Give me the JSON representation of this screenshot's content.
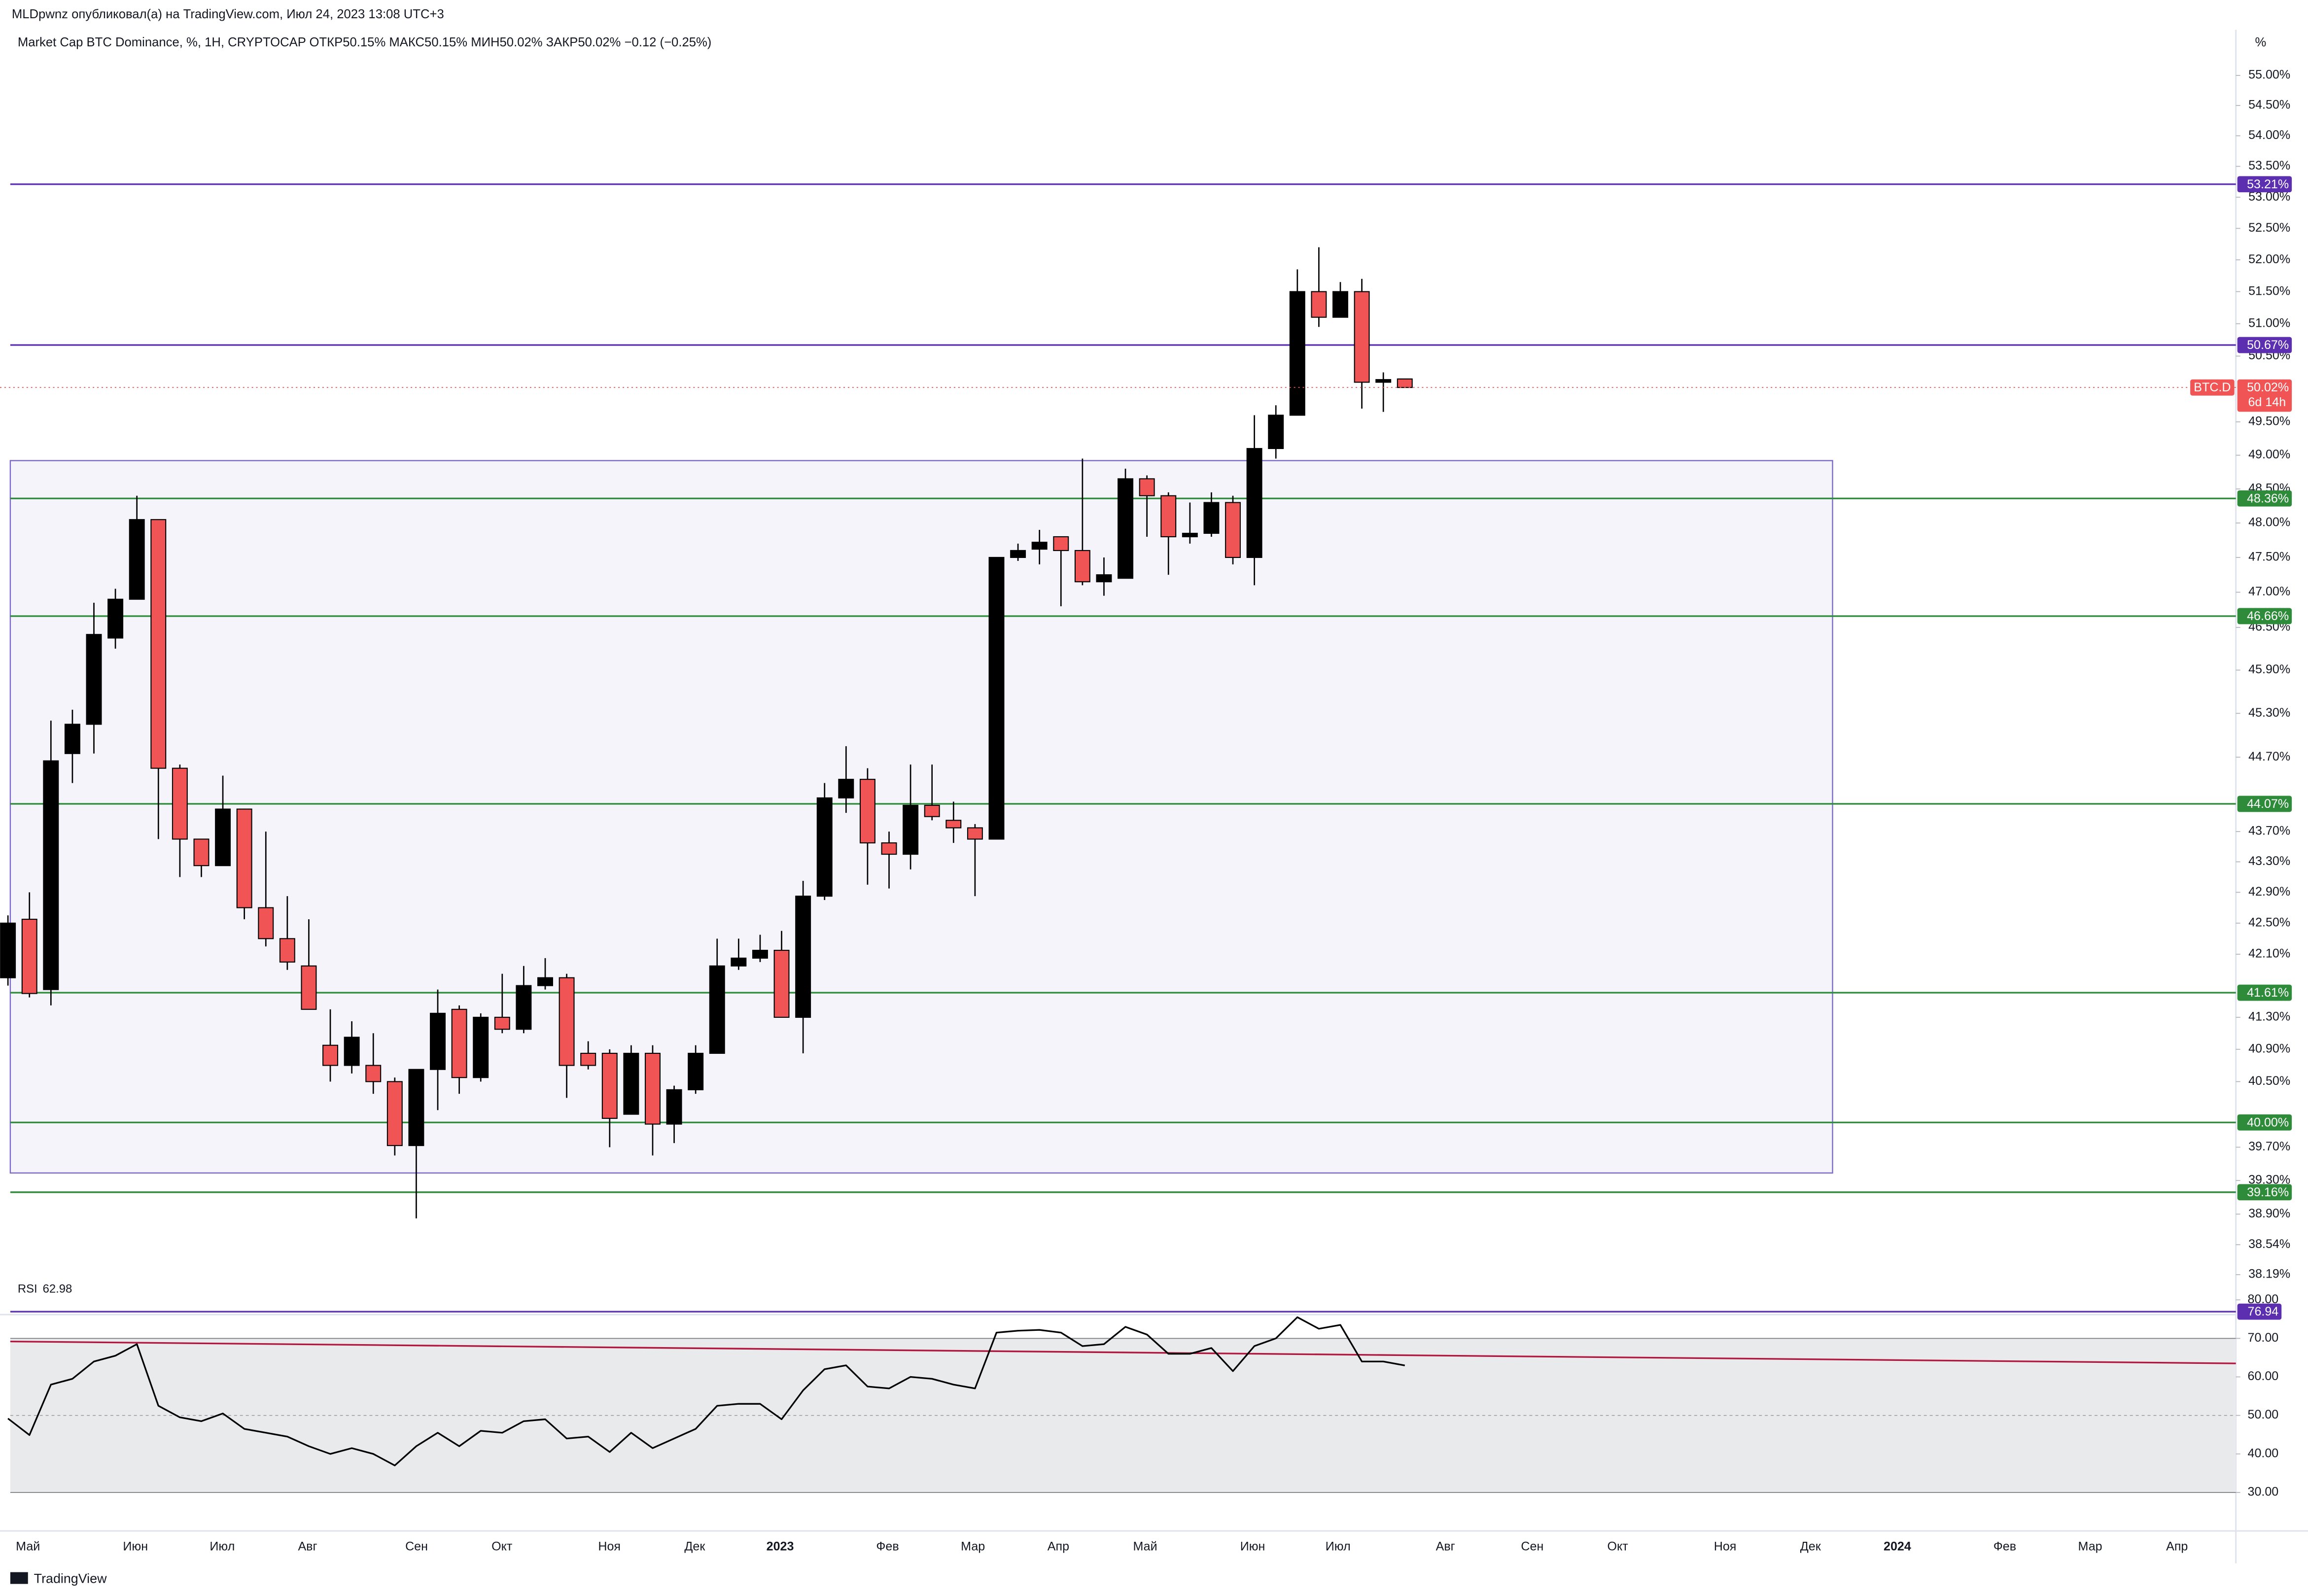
{
  "header": {
    "publisher": "MLDpwnz опубликовал(а) на TradingView.com, Июл 24, 2023 13:08 UTC+3",
    "symbol_line": "Market Cap BTC Dominance, %, 1H, CRYPTOCAP  ОТКР50.15%  МАКС50.15%  МИН50.02%  ЗАКР50.02%  −0.12 (−0.25%)",
    "axis_unit": "%"
  },
  "footer": {
    "brand": "TradingView"
  },
  "chart_data": [
    {
      "type": "candlestick",
      "log_scale": true,
      "up_color": "#000000",
      "down_color": "#f05454",
      "ylim": [
        37.78,
        55.77
      ],
      "yticks": [
        {
          "value": 55,
          "label": "55.00%"
        },
        {
          "value": 54.5,
          "label": "54.50%"
        },
        {
          "value": 54,
          "label": "54.00%"
        },
        {
          "value": 53.5,
          "label": "53.50%"
        },
        {
          "value": 53,
          "label": "53.00%"
        },
        {
          "value": 52.5,
          "label": "52.50%"
        },
        {
          "value": 52,
          "label": "52.00%"
        },
        {
          "value": 51.5,
          "label": "51.50%"
        },
        {
          "value": 51,
          "label": "51.00%"
        },
        {
          "value": 50.5,
          "label": "50.50%"
        },
        {
          "value": 49.5,
          "label": "49.50%"
        },
        {
          "value": 49,
          "label": "49.00%"
        },
        {
          "value": 48.5,
          "label": "48.50%"
        },
        {
          "value": 48,
          "label": "48.00%"
        },
        {
          "value": 47.5,
          "label": "47.50%"
        },
        {
          "value": 47,
          "label": "47.00%"
        },
        {
          "value": 46.5,
          "label": "46.50%"
        },
        {
          "value": 45.9,
          "label": "45.90%"
        },
        {
          "value": 45.3,
          "label": "45.30%"
        },
        {
          "value": 44.7,
          "label": "44.70%"
        },
        {
          "value": 43.7,
          "label": "43.70%"
        },
        {
          "value": 43.3,
          "label": "43.30%"
        },
        {
          "value": 42.9,
          "label": "42.90%"
        },
        {
          "value": 42.5,
          "label": "42.50%"
        },
        {
          "value": 42.1,
          "label": "42.10%"
        },
        {
          "value": 41.3,
          "label": "41.30%"
        },
        {
          "value": 40.9,
          "label": "40.90%"
        },
        {
          "value": 40.5,
          "label": "40.50%"
        },
        {
          "value": 39.7,
          "label": "39.70%"
        },
        {
          "value": 39.3,
          "label": "39.30%"
        },
        {
          "value": 38.9,
          "label": "38.90%"
        },
        {
          "value": 38.54,
          "label": "38.54%"
        },
        {
          "value": 38.19,
          "label": "38.19%"
        }
      ],
      "time_axis": [
        "Май",
        "Июн",
        "Июл",
        "Авг",
        "Сен",
        "Окт",
        "Ноя",
        "Дек",
        "2023",
        "Фев",
        "Мар",
        "Апр",
        "Май",
        "Июн",
        "Июл",
        "Авг",
        "Сен",
        "Окт",
        "Ноя",
        "Дек",
        "2024",
        "Фев",
        "Мар",
        "Апр"
      ],
      "open": [
        41.8,
        42.55,
        41.65,
        44.75,
        45.15,
        46.35,
        46.9,
        48.05,
        44.55,
        43.6,
        43.25,
        44.0,
        42.7,
        42.3,
        41.95,
        40.95,
        40.7,
        40.7,
        40.5,
        39.72,
        40.65,
        41.4,
        40.55,
        41.3,
        41.15,
        41.7,
        41.8,
        40.85,
        40.85,
        40.1,
        40.85,
        39.98,
        40.4,
        40.85,
        41.95,
        42.05,
        42.15,
        41.3,
        42.85,
        44.15,
        44.4,
        43.55,
        43.4,
        44.05,
        43.85,
        43.75,
        43.6,
        47.5,
        47.62,
        47.8,
        47.6,
        47.15,
        47.2,
        48.65,
        48.4,
        47.8,
        47.85,
        48.3,
        47.5,
        49.1,
        49.6,
        51.5,
        51.1,
        51.5,
        50.1,
        50.15
      ],
      "high": [
        42.6,
        42.9,
        45.2,
        45.35,
        46.85,
        47.05,
        48.4,
        48.05,
        44.6,
        43.6,
        44.45,
        44.0,
        43.7,
        42.85,
        42.55,
        41.4,
        41.25,
        41.1,
        40.55,
        40.65,
        41.65,
        41.45,
        41.35,
        41.85,
        41.95,
        42.05,
        41.85,
        41.0,
        40.9,
        40.95,
        40.95,
        40.45,
        40.95,
        42.3,
        42.3,
        42.35,
        42.4,
        43.05,
        44.35,
        44.85,
        44.55,
        43.7,
        44.6,
        44.6,
        44.1,
        43.8,
        47.5,
        47.7,
        47.9,
        47.8,
        48.95,
        47.5,
        48.8,
        48.7,
        48.45,
        48.3,
        48.45,
        48.4,
        49.6,
        49.75,
        51.85,
        52.2,
        51.65,
        51.7,
        50.25,
        50.15
      ],
      "low": [
        41.7,
        41.55,
        41.45,
        44.35,
        44.75,
        46.2,
        46.9,
        43.6,
        43.1,
        43.1,
        43.25,
        42.55,
        42.2,
        41.9,
        41.4,
        40.5,
        40.6,
        40.35,
        39.6,
        38.85,
        40.15,
        40.35,
        40.5,
        41.1,
        41.1,
        41.65,
        40.3,
        40.65,
        39.7,
        40.1,
        39.6,
        39.75,
        40.35,
        40.85,
        41.9,
        42.0,
        41.3,
        40.85,
        42.8,
        43.95,
        43.0,
        42.95,
        43.2,
        43.85,
        43.55,
        42.85,
        43.6,
        47.45,
        47.4,
        46.8,
        47.1,
        46.95,
        47.2,
        47.8,
        47.25,
        47.7,
        47.8,
        47.4,
        47.1,
        48.95,
        49.6,
        50.95,
        51.1,
        49.7,
        49.65,
        50.02
      ],
      "close": [
        42.5,
        41.6,
        44.65,
        45.15,
        46.4,
        46.9,
        48.05,
        44.55,
        43.6,
        43.25,
        44.0,
        42.7,
        42.3,
        42.0,
        41.4,
        40.7,
        41.05,
        40.5,
        39.72,
        40.65,
        41.35,
        40.55,
        41.3,
        41.15,
        41.7,
        41.8,
        40.7,
        40.7,
        40.05,
        40.85,
        39.98,
        40.4,
        40.85,
        41.95,
        42.05,
        42.15,
        41.3,
        42.85,
        44.15,
        44.4,
        43.55,
        43.4,
        44.05,
        43.9,
        43.75,
        43.6,
        47.5,
        47.6,
        47.72,
        47.6,
        47.15,
        47.25,
        48.65,
        48.4,
        47.8,
        47.85,
        48.3,
        47.5,
        49.1,
        49.6,
        51.5,
        51.1,
        51.5,
        50.1,
        50.14,
        50.02
      ],
      "zone": {
        "top": 48.92,
        "bottom": 39.39,
        "color": "#7b68c8"
      },
      "levels": [
        {
          "value": 53.21,
          "label": "53.21%",
          "color": "#5b2fb0"
        },
        {
          "value": 50.67,
          "label": "50.67%",
          "color": "#5b2fb0"
        },
        {
          "value": 48.36,
          "label": "48.36%",
          "color": "#2e8b3a"
        },
        {
          "value": 46.66,
          "label": "46.66%",
          "color": "#2e8b3a"
        },
        {
          "value": 44.07,
          "label": "44.07%",
          "color": "#2e8b3a"
        },
        {
          "value": 41.61,
          "label": "41.61%",
          "color": "#2e8b3a"
        },
        {
          "value": 40,
          "label": "40.00%",
          "color": "#2e8b3a"
        },
        {
          "value": 39.16,
          "label": "39.16%",
          "color": "#2e8b3a"
        }
      ],
      "price_line": {
        "value": 50.02,
        "label": "50.02%",
        "symbol": "BTC.D",
        "countdown": "6d 14h",
        "color": "#f05454"
      }
    },
    {
      "type": "line",
      "title": "RSI",
      "last_value": 62.98,
      "color": "#000000",
      "ylim": [
        20,
        80
      ],
      "yticks": [
        {
          "value": 80,
          "label": "80.00"
        },
        {
          "value": 70,
          "label": "70.00"
        },
        {
          "value": 60,
          "label": "60.00"
        },
        {
          "value": 50,
          "label": "50.00"
        },
        {
          "value": 40,
          "label": "40.00"
        },
        {
          "value": 30,
          "label": "30.00"
        }
      ],
      "band": [
        30,
        70
      ],
      "band_color": "#e9eaec",
      "level": {
        "value": 76.94,
        "color": "#5b2fb0"
      },
      "trend_line": {
        "start": 69.2,
        "end": 63.5,
        "color": "#b0173f"
      },
      "values": [
        49.2,
        44.9,
        58,
        59.5,
        64,
        65.5,
        68.5,
        52.5,
        49.5,
        48.5,
        50.5,
        46.5,
        45.5,
        44.5,
        42,
        40,
        41.5,
        40,
        37,
        42,
        45.5,
        42,
        46,
        45.5,
        48.5,
        49,
        44,
        44.5,
        40.5,
        45.5,
        41.5,
        44,
        46.5,
        52.5,
        53,
        53,
        49,
        56.5,
        62,
        63,
        57.5,
        57,
        60,
        59.5,
        58,
        57,
        71.5,
        72,
        72.2,
        71.5,
        68,
        68.5,
        73,
        71,
        66,
        66,
        67.5,
        61.5,
        68,
        70,
        75.5,
        72.5,
        73.5,
        64,
        64,
        62.98
      ]
    }
  ]
}
